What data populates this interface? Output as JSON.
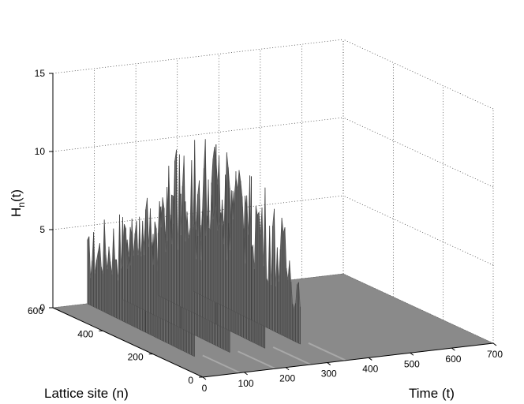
{
  "chart_data": {
    "type": "surface3d",
    "title": "",
    "zlabel": "H_n(t)",
    "zlabel_main": "H",
    "zlabel_sub": "n",
    "zlabel_tail": "(t)",
    "xlabel": "Time (t)",
    "ylabel": "Lattice site (n)",
    "xlim": [
      0,
      700
    ],
    "ylim": [
      0,
      600
    ],
    "zlim": [
      0,
      15
    ],
    "x_ticks": [
      0,
      100,
      200,
      300,
      400,
      500,
      600,
      700
    ],
    "y_ticks": [
      0,
      200,
      400,
      600
    ],
    "z_ticks": [
      0,
      5,
      10,
      15
    ],
    "grid": true,
    "colors": {
      "surface": "#7a7a7a",
      "surface_dark": "#4a4a4a",
      "axis": "#000000"
    },
    "series": [
      {
        "time": 70,
        "site_range": [
          150,
          600
        ],
        "peak": 7.2
      },
      {
        "time": 155,
        "site_range": [
          150,
          600
        ],
        "peak": 8.6
      },
      {
        "time": 240,
        "site_range": [
          150,
          600
        ],
        "peak": 11.5
      },
      {
        "time": 325,
        "site_range": [
          150,
          600
        ],
        "peak": 9.2
      }
    ]
  }
}
